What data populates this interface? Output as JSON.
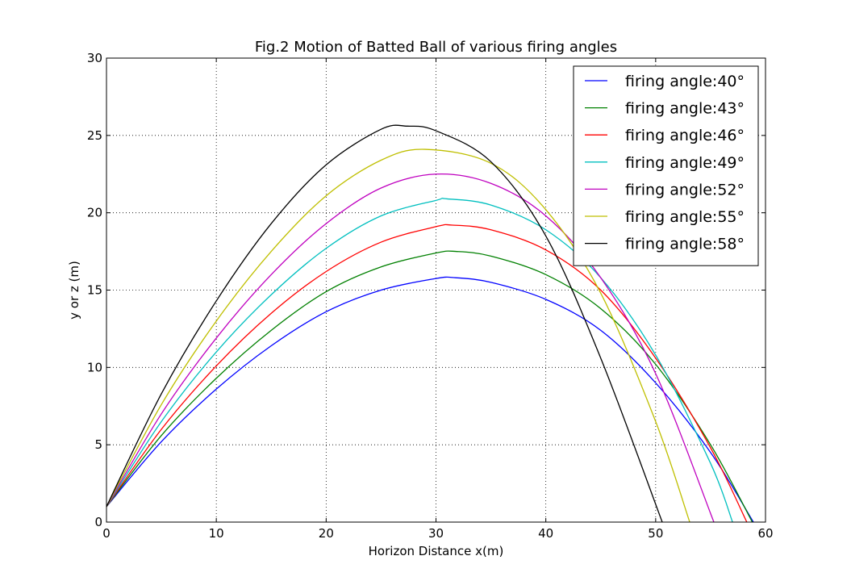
{
  "chart_data": {
    "type": "line",
    "title": "Fig.2 Motion of Batted Ball of various firing angles",
    "xlabel": "Horizon Distance x(m)",
    "ylabel": "y or z (m)",
    "xlim": [
      0,
      60
    ],
    "ylim": [
      0,
      30
    ],
    "xticks": [
      0,
      10,
      20,
      30,
      40,
      50,
      60
    ],
    "yticks": [
      0,
      5,
      10,
      15,
      20,
      25,
      30
    ],
    "grid": true,
    "legend_position": "top-right",
    "series": [
      {
        "name": "firing angle:40°",
        "color": "#0000ff",
        "x": [
          0,
          5,
          10,
          15,
          20,
          25,
          30,
          31.8,
          35,
          40,
          45,
          50,
          55,
          58.9
        ],
        "y": [
          1.0,
          5.2,
          8.6,
          11.4,
          13.6,
          15.0,
          15.75,
          15.8,
          15.5,
          14.4,
          12.4,
          9.0,
          4.5,
          0.0
        ]
      },
      {
        "name": "firing angle:43°",
        "color": "#008000",
        "x": [
          0,
          5,
          10,
          15,
          20,
          25,
          30,
          31.8,
          35,
          40,
          45,
          50,
          55,
          58.8
        ],
        "y": [
          1.0,
          5.6,
          9.3,
          12.4,
          14.9,
          16.5,
          17.4,
          17.5,
          17.2,
          16.0,
          13.8,
          10.2,
          5.0,
          0.0
        ]
      },
      {
        "name": "firing angle:46°",
        "color": "#ff0000",
        "x": [
          0,
          5,
          10,
          15,
          20,
          25,
          30,
          31.5,
          35,
          40,
          45,
          50,
          55,
          58.3
        ],
        "y": [
          1.0,
          6.0,
          10.1,
          13.5,
          16.2,
          18.1,
          19.1,
          19.2,
          18.9,
          17.6,
          15.0,
          10.6,
          4.8,
          0.0
        ]
      },
      {
        "name": "firing angle:49°",
        "color": "#00bfbf",
        "x": [
          0,
          5,
          10,
          15,
          20,
          25,
          30,
          31.0,
          35,
          40,
          45,
          50,
          55,
          57.0
        ],
        "y": [
          1.0,
          6.5,
          11.0,
          14.7,
          17.7,
          19.8,
          20.8,
          20.9,
          20.5,
          18.9,
          15.8,
          10.8,
          3.8,
          0.0
        ]
      },
      {
        "name": "firing angle:52°",
        "color": "#bf00bf",
        "x": [
          0,
          5,
          10,
          15,
          20,
          25,
          30,
          35,
          40,
          45,
          50,
          55.3
        ],
        "y": [
          1.0,
          7.0,
          11.9,
          16.0,
          19.3,
          21.6,
          22.5,
          21.9,
          19.8,
          15.8,
          9.6,
          0.0
        ]
      },
      {
        "name": "firing angle:55°",
        "color": "#bfbf00",
        "x": [
          0,
          5,
          10,
          15,
          20,
          25,
          29.0,
          35,
          40,
          45,
          50,
          53.1
        ],
        "y": [
          1.0,
          7.6,
          13.0,
          17.5,
          21.1,
          23.4,
          24.1,
          23.2,
          20.2,
          14.8,
          6.5,
          0.0
        ]
      },
      {
        "name": "firing angle:58°",
        "color": "#000000",
        "x": [
          0,
          5,
          10,
          15,
          20,
          25,
          27.4,
          30,
          35,
          40,
          45,
          50.6
        ],
        "y": [
          1.0,
          8.3,
          14.3,
          19.3,
          23.1,
          25.4,
          25.6,
          25.3,
          23.3,
          18.5,
          10.6,
          0.0
        ]
      }
    ]
  }
}
